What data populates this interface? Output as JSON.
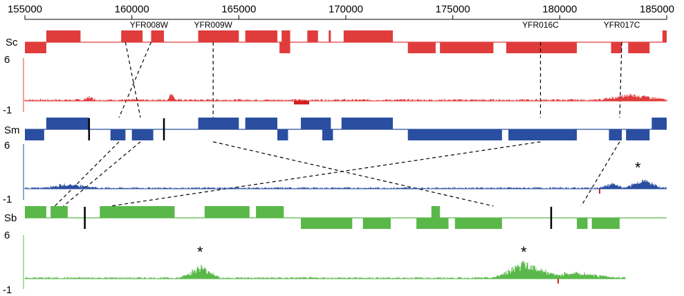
{
  "axis": {
    "min": 155000,
    "max": 185000,
    "ticks": [
      "155000",
      "160000",
      "165000",
      "170000",
      "175000",
      "180000",
      "185000"
    ]
  },
  "colors": {
    "sc": "#e03c3c",
    "sm": "#2a4ea0",
    "sb": "#5ab84a",
    "black": "#000000",
    "red_spike": "#d42020"
  },
  "tracks": {
    "sc": {
      "label": "Sc",
      "top_genes": [
        [
          156000,
          157600
        ],
        [
          159500,
          160500
        ],
        [
          160900,
          161500
        ],
        [
          163100,
          165000
        ],
        [
          165300,
          166800
        ],
        [
          167000,
          167400
        ],
        [
          168200,
          168700
        ],
        [
          169200,
          169300
        ],
        [
          169900,
          172200
        ],
        [
          185000,
          185000
        ],
        [
          184800,
          185000
        ]
      ],
      "bottom_genes": [
        [
          155000,
          156000
        ],
        [
          166900,
          167400
        ],
        [
          172900,
          174200
        ],
        [
          174400,
          176900
        ],
        [
          177500,
          180800
        ],
        [
          182400,
          182900
        ],
        [
          183200,
          184200
        ]
      ],
      "gene_labels": [
        {
          "text": "YFR008W",
          "pos": 160800
        },
        {
          "text": "YFR009W",
          "pos": 163800
        },
        {
          "text": "YFR016C",
          "pos": 179100
        },
        {
          "text": "YFR017C",
          "pos": 182900
        }
      ]
    },
    "sm": {
      "label": "Sm",
      "top_genes": [
        [
          156000,
          158000
        ],
        [
          163100,
          165000
        ],
        [
          165300,
          166800
        ],
        [
          167900,
          169300
        ],
        [
          169800,
          172200
        ],
        [
          184300,
          185000
        ]
      ],
      "bottom_genes": [
        [
          155000,
          155900
        ],
        [
          159000,
          159700
        ],
        [
          160000,
          161000
        ],
        [
          166800,
          167300
        ],
        [
          168900,
          169400
        ],
        [
          172900,
          177300
        ],
        [
          177600,
          180800
        ],
        [
          182300,
          182900
        ],
        [
          183100,
          184200
        ]
      ],
      "ticks": [
        158000,
        161500
      ]
    },
    "sb": {
      "label": "Sb",
      "top_genes": [
        [
          155000,
          156000
        ],
        [
          156200,
          157000
        ],
        [
          158500,
          162000
        ],
        [
          163400,
          165500
        ],
        [
          165800,
          167100
        ],
        [
          174000,
          174400
        ]
      ],
      "bottom_genes": [
        [
          167900,
          170300
        ],
        [
          170800,
          172100
        ],
        [
          173300,
          174800
        ],
        [
          175100,
          177300
        ],
        [
          180800,
          181300
        ],
        [
          181500,
          182800
        ]
      ],
      "ticks": [
        157800,
        179600
      ]
    }
  },
  "signals": {
    "sc": {
      "ymax": "6",
      "ymin": "-1"
    },
    "sm": {
      "ymax": "6",
      "ymin": "-1",
      "star": "*"
    },
    "sb": {
      "ymax": "6",
      "ymin": "-1",
      "star1": "*",
      "star2": "*"
    }
  },
  "connectors": [
    {
      "from": "sc",
      "from_pos": 159700,
      "to": "sm",
      "to_pos": 160400
    },
    {
      "from": "sc",
      "from_pos": 160900,
      "to": "sm",
      "to_pos": 159400
    },
    {
      "from": "sc",
      "from_pos": 163800,
      "to": "sm",
      "to_pos": 163800
    },
    {
      "from": "sc",
      "from_pos": 179100,
      "to": "sm",
      "to_pos": 179100
    },
    {
      "from": "sc",
      "from_pos": 182900,
      "to": "sm",
      "to_pos": 182800
    },
    {
      "from": "sm",
      "from_pos": 159400,
      "to": "sb",
      "to_pos": 156400
    },
    {
      "from": "sm",
      "from_pos": 160400,
      "to": "sb",
      "to_pos": 156800
    },
    {
      "from": "sm",
      "from_pos": 163800,
      "to": "sb",
      "to_pos": 176900
    },
    {
      "from": "sm",
      "from_pos": 179100,
      "to": "sb",
      "to_pos": 159000
    },
    {
      "from": "sm",
      "from_pos": 182800,
      "to": "sb",
      "to_pos": 181000
    }
  ]
}
